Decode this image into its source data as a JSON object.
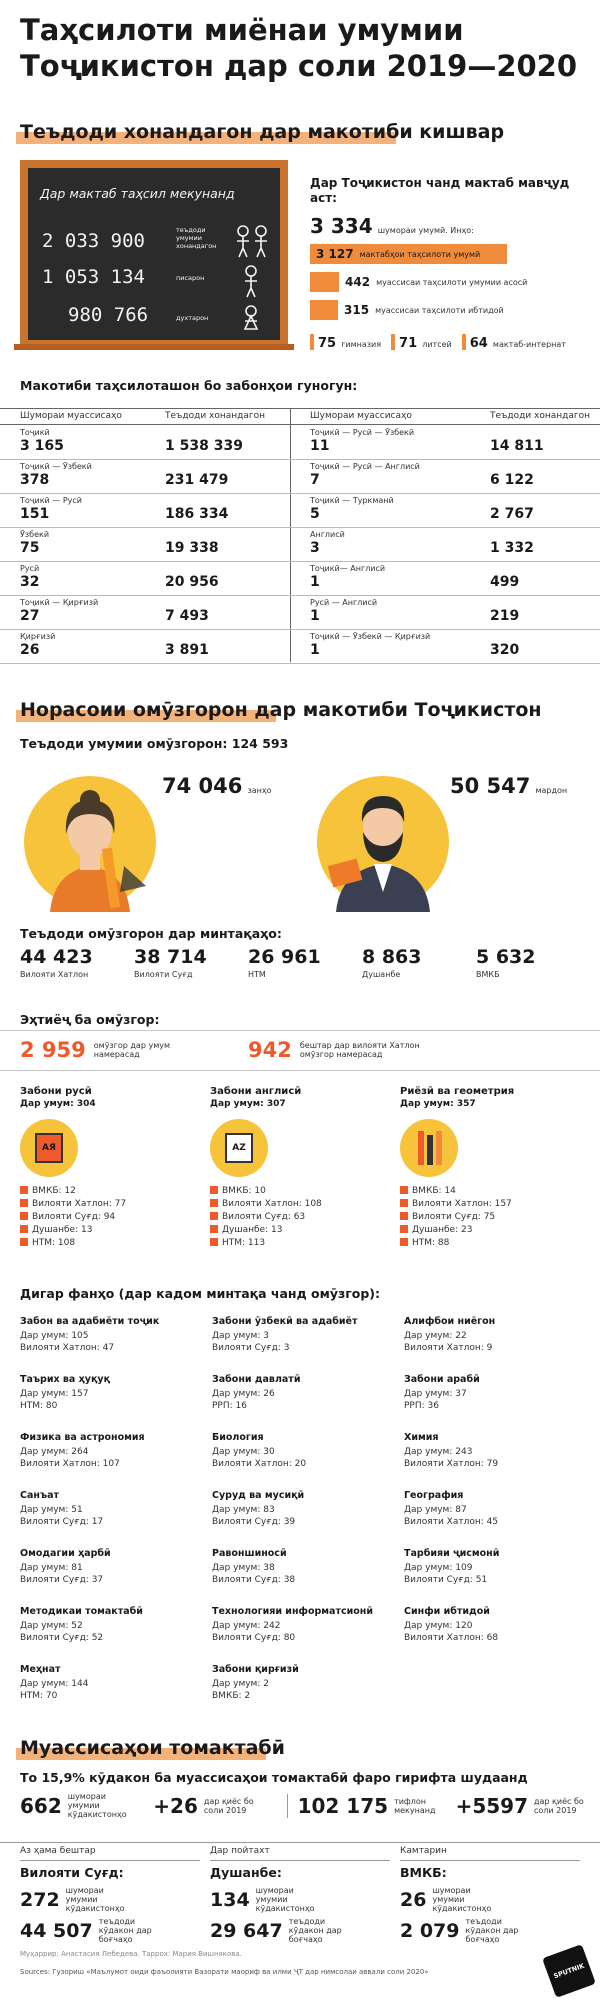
{
  "title": [
    "Таҳсилоти миёнаи умумии",
    "Тоҷикистон дар соли 2019—2020"
  ],
  "sec1": {
    "heading": "Теъдоди хонандагон дар макотиби кишвар",
    "board": {
      "title": "Дар мактаб таҳсил мекунанд",
      "rows": [
        {
          "value": "2 033 900",
          "label": "теъдоди умумии хонандагон"
        },
        {
          "value": "1 053 134",
          "label": "писарон"
        },
        {
          "value": "980 766",
          "label": "духтарон"
        }
      ]
    },
    "schools_title": "Дар Тоҷикистон чанд мактаб мавҷуд аст:",
    "total": {
      "value": "3 334",
      "label": "шумораи умумӣ. Инҳо:"
    },
    "bars": [
      {
        "value": "3 127",
        "label": "мактабҳои таҳсилоти умумӣ",
        "frac": 0.94
      },
      {
        "value": "442",
        "label": "муассисаи таҳсилоти умумии асосӣ",
        "frac": 0.14
      },
      {
        "value": "315",
        "label": "муассисаи таҳсилоти ибтидоӣ",
        "frac": 0.1
      }
    ],
    "small_items": [
      {
        "value": "75",
        "label": "гимназия"
      },
      {
        "value": "71",
        "label": "литсей"
      },
      {
        "value": "64",
        "label": "мактаб-интернат"
      }
    ]
  },
  "lang_table": {
    "title": "Макотиби таҳсилоташон бо забонҳои гуногун:",
    "h_inst": "Шумораи муассисаҳо",
    "h_stud": "Теъдоди хонандагон",
    "left": [
      {
        "lang": "Тоҷикӣ",
        "inst": "3 165",
        "stud": "1 538 339"
      },
      {
        "lang": "Тоҷикӣ — Ӯзбекӣ",
        "inst": "378",
        "stud": "231 479"
      },
      {
        "lang": "Тоҷикӣ — Русӣ",
        "inst": "151",
        "stud": "186 334"
      },
      {
        "lang": "Ӯзбекӣ",
        "inst": "75",
        "stud": "19 338"
      },
      {
        "lang": "Русӣ",
        "inst": "32",
        "stud": "20 956"
      },
      {
        "lang": "Тоҷикӣ — Қирғизӣ",
        "inst": "27",
        "stud": "7 493"
      },
      {
        "lang": "Қирғизӣ",
        "inst": "26",
        "stud": "3 891"
      }
    ],
    "right": [
      {
        "lang": "Тоҷикӣ — Русӣ — Ӯзбекӣ",
        "inst": "11",
        "stud": "14 811"
      },
      {
        "lang": "Тоҷикӣ — Русӣ — Англисӣ",
        "inst": "7",
        "stud": "6 122"
      },
      {
        "lang": "Тоҷикӣ — Туркманӣ",
        "inst": "5",
        "stud": "2 767"
      },
      {
        "lang": "Англисӣ",
        "inst": "3",
        "stud": "1 332"
      },
      {
        "lang": "Тоҷикӣ— Англисӣ",
        "inst": "1",
        "stud": "499"
      },
      {
        "lang": "Русӣ — Англисӣ",
        "inst": "1",
        "stud": "219"
      },
      {
        "lang": "Тоҷикӣ — Ӯзбекӣ — Қирғизӣ",
        "inst": "1",
        "stud": "320"
      }
    ]
  },
  "teachers": {
    "heading": "Норасоии омӯзгорон дар макотиби Тоҷикистон",
    "total": "Теъдоди умумии омӯзгорон: 124 593",
    "women": {
      "value": "74 046",
      "label": "занҳо"
    },
    "men": {
      "value": "50 547",
      "label": "мардон"
    },
    "regions_title": "Теъдоди омӯзгорон дар минтақаҳо:",
    "regions": [
      {
        "value": "44 423",
        "label": "Вилояти Хатлон"
      },
      {
        "value": "38 714",
        "label": "Вилояти Суғд"
      },
      {
        "value": "26 961",
        "label": "НТМ"
      },
      {
        "value": "8 863",
        "label": "Душанбе"
      },
      {
        "value": "5 632",
        "label": "ВМКБ"
      }
    ]
  },
  "need": {
    "title": "Эҳтиёҷ ба омӯзгор:",
    "a": {
      "value": "2 959",
      "label": "омӯзгор дар умум намерасад"
    },
    "b": {
      "value": "942",
      "label": "бештар дар вилояти Хатлон омӯзгор намерасад"
    },
    "subjects": [
      {
        "name": "Забони русӣ",
        "total": "Дар умум: 304",
        "icon": "АЯ",
        "items": [
          "ВМКБ: 12",
          "Вилояти Хатлон: 77",
          "Вилояти Суғд: 94",
          "Душанбе: 13",
          "НТМ: 108"
        ]
      },
      {
        "name": "Забони англисӣ",
        "total": "Дар умум: 307",
        "icon": "AZ",
        "items": [
          "ВМКБ: 10",
          "Вилояти Хатлон: 108",
          "Вилояти Суғд: 63",
          "Душанбе: 13",
          "НТМ: 113"
        ]
      },
      {
        "name": "Риёзӣ ва геометрия",
        "total": "Дар умум: 357",
        "icon": "",
        "items": [
          "ВМКБ: 14",
          "Вилояти Хатлон: 157",
          "Вилояти Суғд: 75",
          "Душанбе: 23",
          "НТМ: 88"
        ]
      }
    ]
  },
  "other": {
    "title": "Дигар фанҳо (дар кадом минтақа чанд омӯзгор):",
    "items": [
      {
        "name": "Забон ва адабиёти тоҷик",
        "a": "Дар умум: 105",
        "b": "Вилояти Хатлон: 47"
      },
      {
        "name": "Забони ӯзбекӣ ва адабиёт",
        "a": "Дар умум: 3",
        "b": "Вилояти Суғд: 3"
      },
      {
        "name": "Алифбои ниёгон",
        "a": "Дар умум: 22",
        "b": "Вилояти Хатлон: 9"
      },
      {
        "name": "Таърих ва ҳуқуқ",
        "a": "Дар умум: 157",
        "b": "НТМ: 80"
      },
      {
        "name": "Забони давлатӣ",
        "a": "Дар умум: 26",
        "b": "РРП: 16"
      },
      {
        "name": "Забони арабӣ",
        "a": "Дар умум: 37",
        "b": "РРП: 36"
      },
      {
        "name": "Физика ва астрономия",
        "a": "Дар умум: 264",
        "b": "Вилояти Хатлон: 107"
      },
      {
        "name": "Биология",
        "a": "Дар умум: 30",
        "b": "Вилояти Хатлон: 20"
      },
      {
        "name": "Химия",
        "a": "Дар умум: 243",
        "b": "Вилояти Хатлон: 79"
      },
      {
        "name": "Санъат",
        "a": "Дар умум: 51",
        "b": "Вилояти Суғд: 17"
      },
      {
        "name": "Суруд ва мусиқӣ",
        "a": "Дар умум: 83",
        "b": "Вилояти Суғд: 39"
      },
      {
        "name": "География",
        "a": "Дар умум: 87",
        "b": "Вилояти Хатлон: 45"
      },
      {
        "name": "Омодагии ҳарбӣ",
        "a": "Дар умум: 81",
        "b": "Вилояти Суғд: 37"
      },
      {
        "name": "Равоншиносӣ",
        "a": "Дар умум: 38",
        "b": "Вилояти Суғд: 38"
      },
      {
        "name": "Тарбияи ҷисмонӣ",
        "a": "Дар умум: 109",
        "b": "Вилояти Суғд: 51"
      },
      {
        "name": "Методикаи томактабӣ",
        "a": "Дар умум: 52",
        "b": "Вилояти Суғд: 52"
      },
      {
        "name": "Технологияи информатсионӣ",
        "a": "Дар умум: 242",
        "b": "Вилояти Суғд: 80"
      },
      {
        "name": "Синфи ибтидоӣ",
        "a": "Дар умум: 120",
        "b": "Вилояти Хатлон: 68"
      },
      {
        "name": "Меҳнат",
        "a": "Дар умум: 144",
        "b": "НТМ: 70"
      },
      {
        "name": "Забони қирғизӣ",
        "a": "Дар умум: 2",
        "b": "ВМКБ: 2"
      }
    ]
  },
  "preschool": {
    "heading": "Муассисаҳои томактабӣ",
    "subtitle": "То 15,9% кӯдакон ба муассисаҳои томактабӣ фаро гирифта шудаанд",
    "stats": [
      {
        "value": "662",
        "label": "шумораи умумии кӯдакистонҳо"
      },
      {
        "value": "+26",
        "label": "дар қиёс бо соли 2019"
      },
      {
        "value": "102 175",
        "label": "тарбиятгирандагон"
      },
      {
        "value": "+5597",
        "label": "дар қиёс бо соли 2019"
      }
    ],
    "stats_labels": [
      "шумораи умумии кӯдакистонҳо",
      "дар қиёс бо соли 2019",
      "тифлон мекунанд",
      "дар қиёс бо соли 2019"
    ],
    "cols": [
      {
        "head": "Аз ҳама бештар",
        "region": "Вилояти Суғд:",
        "v1": "272",
        "l1": "шумораи умумии кӯдакистонҳо",
        "v2": "44 507",
        "l2": "теъдоди кӯдакон дар боғчаҳо"
      },
      {
        "head": "Дар пойтахт",
        "region": "Душанбе:",
        "v1": "134",
        "l1": "шумораи умумии кӯдакистонҳо",
        "v2": "29 647",
        "l2": "теъдоди кӯдакон дар боғчаҳо"
      },
      {
        "head": "Камтарин",
        "region": "ВМКБ:",
        "v1": "26",
        "l1": "шумораи умумии кӯдакистонҳо",
        "v2": "2 079",
        "l2": "теъдоди кӯдакон дар боғчаҳо"
      }
    ]
  },
  "footer": {
    "credits": "Муҳаррир: Анастасия Лебедева. Таррох: Мария Вишнякова.",
    "sources": "Sources:  Гузориш «Маълумот оиди фаъолияти Вазорати маориф ва илми ҶТ дар нимсолаи аввали соли 2020»",
    "logo": "SPUTNIK"
  },
  "colors": {
    "accent": "#ef5a2a",
    "bar": "#ef8b3a",
    "highlight": "#f3b27a",
    "board": "#2b2b2b",
    "frame": "#c8742e"
  }
}
